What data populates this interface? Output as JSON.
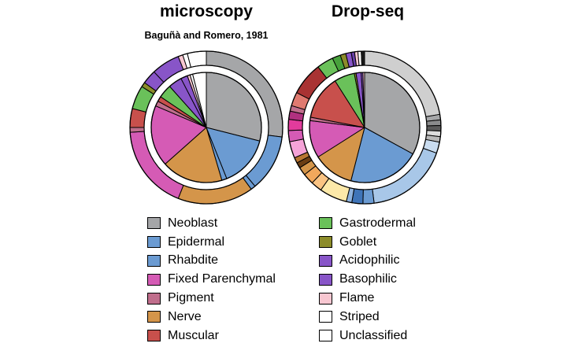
{
  "chart_data": [
    {
      "type": "pie",
      "title": "microscopy",
      "subtitle": "Baguñà and Romero, 1981",
      "inner_ring": [
        {
          "category": "Neoblast",
          "color": "#a5a6a8",
          "value": 29
        },
        {
          "category": "Epidermal",
          "color": "#6b9bd2",
          "value": 15
        },
        {
          "category": "Rhabdite",
          "color": "#6b9bd2",
          "value": 1.5
        },
        {
          "category": "Nerve",
          "color": "#d4954a",
          "value": 18
        },
        {
          "category": "Fixed Parenchymal",
          "color": "#d55bb5",
          "value": 18
        },
        {
          "category": "Pigment",
          "color": "#c06e8c",
          "value": 1.5
        },
        {
          "category": "Muscular",
          "color": "#c8504c",
          "value": 1.5
        },
        {
          "category": "Gastrodermal",
          "color": "#6ac15a",
          "value": 4
        },
        {
          "category": "Acidophilic",
          "color": "#8855c8",
          "value": 4
        },
        {
          "category": "Basophilic",
          "color": "#8855c8",
          "value": 2
        },
        {
          "category": "Flame",
          "color": "#f8c7d1",
          "value": 0.8
        },
        {
          "category": "Striped",
          "color": "#ffffff",
          "value": 0.8
        },
        {
          "category": "Unclassified",
          "color": "#ffffff",
          "value": 4
        }
      ],
      "outer_ring": [
        {
          "category": "Neoblast",
          "color": "#a5a6a8",
          "value": 27
        },
        {
          "category": "Epidermal",
          "color": "#6b9bd2",
          "value": 12
        },
        {
          "category": "Rhabdite",
          "color": "#6b9bd2",
          "value": 1
        },
        {
          "category": "Nerve",
          "color": "#d4954a",
          "value": 16
        },
        {
          "category": "Fixed Parenchymal",
          "color": "#d55bb5",
          "value": 18
        },
        {
          "category": "Pigment",
          "color": "#c06e8c",
          "value": 1
        },
        {
          "category": "Muscular",
          "color": "#c8504c",
          "value": 4
        },
        {
          "category": "Gastrodermal",
          "color": "#6ac15a",
          "value": 5
        },
        {
          "category": "Goblet",
          "color": "#8c8c2a",
          "value": 1
        },
        {
          "category": "Acidophilic",
          "color": "#8855c8",
          "value": 3
        },
        {
          "category": "Basophilic",
          "color": "#8855c8",
          "value": 6
        },
        {
          "category": "Flame",
          "color": "#f8c7d1",
          "value": 1
        },
        {
          "category": "Striped",
          "color": "#ffffff",
          "value": 1
        },
        {
          "category": "Unclassified",
          "color": "#ffffff",
          "value": 4
        }
      ]
    },
    {
      "type": "pie",
      "title": "Drop-seq",
      "inner_ring": [
        {
          "category": "Neoblast",
          "color": "#a5a6a8",
          "value": 33
        },
        {
          "category": "Epidermal",
          "color": "#6b9bd2",
          "value": 21
        },
        {
          "category": "Nerve",
          "color": "#d4954a",
          "value": 12
        },
        {
          "category": "Fixed Parenchymal",
          "color": "#d55bb5",
          "value": 11
        },
        {
          "category": "Pigment",
          "color": "#c06e8c",
          "value": 1
        },
        {
          "category": "Muscular",
          "color": "#c8504c",
          "value": 13
        },
        {
          "category": "Gastrodermal",
          "color": "#6ac15a",
          "value": 6
        },
        {
          "category": "Goblet",
          "color": "#8c8c2a",
          "value": 0.5
        },
        {
          "category": "Acidophilic",
          "color": "#8855c8",
          "value": 1.5
        },
        {
          "category": "Basophilic",
          "color": "#8855c8",
          "value": 0.5
        },
        {
          "category": "Flame",
          "color": "#f8c7d1",
          "value": 0.5
        }
      ],
      "outer_ring": [
        {
          "category": "Neoblast",
          "color": "#cfcfcf",
          "value": 19
        },
        {
          "category": "Neoblast",
          "color": "#a5a6a8",
          "value": 1
        },
        {
          "category": "Neoblast",
          "color": "#8a8b8c",
          "value": 1
        },
        {
          "category": "Neoblast",
          "color": "#5a5a5a",
          "value": 1
        },
        {
          "category": "Neoblast",
          "color": "#dcdcdc",
          "value": 1
        },
        {
          "category": "Neoblast",
          "color": "#b9b9b9",
          "value": 1
        },
        {
          "category": "Epidermal",
          "color": "#c9dcf0",
          "value": 2
        },
        {
          "category": "Epidermal",
          "color": "#a8c7e8",
          "value": 15
        },
        {
          "category": "Epidermal",
          "color": "#6b9bd2",
          "value": 2
        },
        {
          "category": "Epidermal",
          "color": "#3f74b8",
          "value": 2
        },
        {
          "category": "Epidermal",
          "color": "#8fb3df",
          "value": 1
        },
        {
          "category": "Nerve",
          "color": "#fde9a9",
          "value": 5
        },
        {
          "category": "Nerve",
          "color": "#fac383",
          "value": 2
        },
        {
          "category": "Nerve",
          "color": "#f2a85c",
          "value": 2
        },
        {
          "category": "Nerve",
          "color": "#d4954a",
          "value": 1.5
        },
        {
          "category": "Nerve",
          "color": "#6b3e14",
          "value": 1
        },
        {
          "category": "Nerve",
          "color": "#b87733",
          "value": 1
        },
        {
          "category": "Fixed Parenchymal",
          "color": "#f5a3d8",
          "value": 3
        },
        {
          "category": "Fixed Parenchymal",
          "color": "#d55bb5",
          "value": 2
        },
        {
          "category": "Fixed Parenchymal",
          "color": "#e23b9c",
          "value": 2
        },
        {
          "category": "Fixed Parenchymal",
          "color": "#b0307f",
          "value": 1.5
        },
        {
          "category": "Pigment",
          "color": "#c06e8c",
          "value": 1
        },
        {
          "category": "Muscular",
          "color": "#e07a70",
          "value": 2.5
        },
        {
          "category": "Muscular",
          "color": "#a93333",
          "value": 6
        },
        {
          "category": "Gastrodermal",
          "color": "#6ac15a",
          "value": 3
        },
        {
          "category": "Gastrodermal",
          "color": "#47a13c",
          "value": 1.5
        },
        {
          "category": "Goblet",
          "color": "#8c8c2a",
          "value": 1
        },
        {
          "category": "Acidophilic",
          "color": "#8855c8",
          "value": 1
        },
        {
          "category": "Basophilic",
          "color": "#6a3fa8",
          "value": 0.6
        },
        {
          "category": "Flame",
          "color": "#f8c7d1",
          "value": 0.6
        },
        {
          "category": "Striped",
          "color": "#ffffff",
          "value": 0.6
        },
        {
          "category": "Unclassified",
          "color": "#1a1a1a",
          "value": 0.6
        }
      ]
    }
  ],
  "legend": {
    "left": [
      {
        "label": "Neoblast",
        "color": "#a5a6a8"
      },
      {
        "label": "Epidermal",
        "color": "#6b9bd2"
      },
      {
        "label": "Rhabdite",
        "color": "#6b9bd2"
      },
      {
        "label": "Fixed Parenchymal",
        "color": "#d55bb5"
      },
      {
        "label": "Pigment",
        "color": "#c06e8c"
      },
      {
        "label": "Nerve",
        "color": "#d4954a"
      },
      {
        "label": "Muscular",
        "color": "#c8504c"
      }
    ],
    "right": [
      {
        "label": "Gastrodermal",
        "color": "#6ac15a"
      },
      {
        "label": "Goblet",
        "color": "#8c8c2a"
      },
      {
        "label": "Acidophilic",
        "color": "#8855c8"
      },
      {
        "label": "Basophilic",
        "color": "#8855c8"
      },
      {
        "label": "Flame",
        "color": "#f8c7d1"
      },
      {
        "label": "Striped",
        "color": "#ffffff"
      },
      {
        "label": "Unclassified",
        "color": "#ffffff"
      }
    ]
  }
}
